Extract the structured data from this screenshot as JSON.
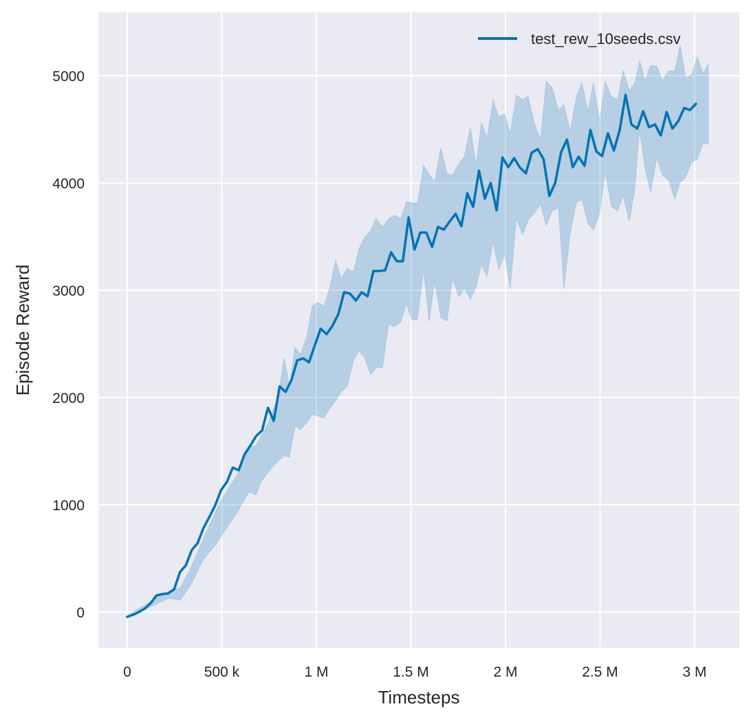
{
  "chart_data": {
    "type": "line",
    "title": "",
    "xlabel": "Timesteps",
    "ylabel": "Episode Reward",
    "xlim": [
      -150000,
      3250000
    ],
    "ylim": [
      -330,
      5600
    ],
    "grid": true,
    "legend_position": "top-right",
    "x_ticks": [
      0,
      500000,
      1000000,
      1500000,
      2000000,
      2500000,
      3000000
    ],
    "x_tick_labels": [
      "0",
      "500 k",
      "1 M",
      "1.5 M",
      "2 M",
      "2.5 M",
      "3 M"
    ],
    "y_ticks": [
      0,
      1000,
      2000,
      3000,
      4000,
      5000
    ],
    "y_tick_labels": [
      "0",
      "1000",
      "2000",
      "3000",
      "4000",
      "5000"
    ],
    "colors": {
      "background": "#eaeaf2",
      "grid": "#ffffff",
      "line": "#0173b2"
    },
    "series": [
      {
        "name": "test_rew_10seeds.csv",
        "x_step": 31000,
        "mean": [
          -45,
          -26,
          0,
          32,
          83,
          154,
          167,
          173,
          212,
          372,
          436,
          577,
          641,
          782,
          885,
          994,
          1135,
          1212,
          1346,
          1321,
          1468,
          1551,
          1641,
          1692,
          1904,
          1782,
          2103,
          2051,
          2160,
          2346,
          2365,
          2327,
          2487,
          2641,
          2590,
          2667,
          2776,
          2981,
          2968,
          2904,
          2981,
          2942,
          3179,
          3179,
          3186,
          3353,
          3269,
          3269,
          3679,
          3378,
          3538,
          3538,
          3404,
          3590,
          3564,
          3641,
          3712,
          3596,
          3904,
          3776,
          4115,
          3853,
          4000,
          3744,
          4237,
          4147,
          4231,
          4141,
          4090,
          4282,
          4314,
          4224,
          3878,
          4000,
          4288,
          4404,
          4147,
          4244,
          4160,
          4494,
          4295,
          4250,
          4462,
          4301,
          4494,
          4821,
          4545,
          4506,
          4667,
          4519,
          4545,
          4442,
          4660,
          4506,
          4577,
          4699,
          4679,
          4737
        ],
        "band_upper": [
          [
            0,
            -32
          ],
          [
            236000,
            212
          ],
          [
            280000,
            224
          ],
          [
            338000,
            417
          ],
          [
            400000,
            673
          ],
          [
            491000,
            1026
          ],
          [
            582000,
            1282
          ],
          [
            644000,
            1538
          ],
          [
            680000,
            1551
          ],
          [
            745000,
            1763
          ],
          [
            800000,
            2019
          ],
          [
            829000,
            2372
          ],
          [
            858000,
            2115
          ],
          [
            887000,
            2468
          ],
          [
            916000,
            2404
          ],
          [
            949000,
            2564
          ],
          [
            978000,
            2853
          ],
          [
            1007000,
            2885
          ],
          [
            1040000,
            2853
          ],
          [
            1069000,
            3013
          ],
          [
            1102000,
            3282
          ],
          [
            1131000,
            3109
          ],
          [
            1164000,
            3205
          ],
          [
            1196000,
            3173
          ],
          [
            1225000,
            3385
          ],
          [
            1255000,
            3494
          ],
          [
            1287000,
            3558
          ],
          [
            1316000,
            3667
          ],
          [
            1349000,
            3590
          ],
          [
            1382000,
            3667
          ],
          [
            1415000,
            3699
          ],
          [
            1447000,
            3667
          ],
          [
            1476000,
            3827
          ],
          [
            1505000,
            3814
          ],
          [
            1535000,
            3814
          ],
          [
            1567000,
            4167
          ],
          [
            1596000,
            4083
          ],
          [
            1625000,
            4006
          ],
          [
            1658000,
            4327
          ],
          [
            1691000,
            4090
          ],
          [
            1720000,
            4071
          ],
          [
            1753000,
            4179
          ],
          [
            1782000,
            4244
          ],
          [
            1815000,
            4519
          ],
          [
            1844000,
            4167
          ],
          [
            1873000,
            4564
          ],
          [
            1902000,
            4423
          ],
          [
            1935000,
            4776
          ],
          [
            1964000,
            4615
          ],
          [
            1996000,
            4647
          ],
          [
            2025000,
            4455
          ],
          [
            2058000,
            4820
          ],
          [
            2091000,
            4776
          ],
          [
            2120000,
            4808
          ],
          [
            2153000,
            4551
          ],
          [
            2185000,
            4404
          ],
          [
            2215000,
            4949
          ],
          [
            2247000,
            4885
          ],
          [
            2280000,
            4679
          ],
          [
            2309000,
            4731
          ],
          [
            2342000,
            4487
          ],
          [
            2375000,
            4808
          ],
          [
            2404000,
            4936
          ],
          [
            2436000,
            4667
          ],
          [
            2465000,
            4936
          ],
          [
            2498000,
            4583
          ],
          [
            2527000,
            4949
          ],
          [
            2560000,
            4808
          ],
          [
            2593000,
            4776
          ],
          [
            2622000,
            5051
          ],
          [
            2655000,
            4859
          ],
          [
            2684000,
            4936
          ],
          [
            2709000,
            5141
          ],
          [
            2738000,
            4955
          ],
          [
            2767000,
            5096
          ],
          [
            2800000,
            5090
          ],
          [
            2829000,
            4955
          ],
          [
            2862000,
            5045
          ],
          [
            2895000,
            5045
          ],
          [
            2924000,
            5288
          ],
          [
            2953000,
            4981
          ],
          [
            2985000,
            5013
          ],
          [
            3015000,
            5179
          ],
          [
            3044000,
            5019
          ],
          [
            3073000,
            5109
          ]
        ],
        "band_lower": [
          [
            0,
            -58
          ],
          [
            218000,
            128
          ],
          [
            280000,
            109
          ],
          [
            338000,
            256
          ],
          [
            400000,
            481
          ],
          [
            473000,
            641
          ],
          [
            545000,
            833
          ],
          [
            582000,
            929
          ],
          [
            644000,
            1122
          ],
          [
            680000,
            1090
          ],
          [
            709000,
            1218
          ],
          [
            771000,
            1359
          ],
          [
            800000,
            1410
          ],
          [
            829000,
            1455
          ],
          [
            858000,
            1442
          ],
          [
            887000,
            1731
          ],
          [
            916000,
            1699
          ],
          [
            949000,
            1763
          ],
          [
            978000,
            1840
          ],
          [
            1007000,
            1827
          ],
          [
            1040000,
            1808
          ],
          [
            1069000,
            1891
          ],
          [
            1102000,
            1968
          ],
          [
            1131000,
            2051
          ],
          [
            1164000,
            2103
          ],
          [
            1196000,
            2340
          ],
          [
            1225000,
            2436
          ],
          [
            1255000,
            2372
          ],
          [
            1287000,
            2212
          ],
          [
            1316000,
            2276
          ],
          [
            1349000,
            2276
          ],
          [
            1382000,
            2679
          ],
          [
            1415000,
            2660
          ],
          [
            1447000,
            2705
          ],
          [
            1476000,
            2872
          ],
          [
            1505000,
            2724
          ],
          [
            1535000,
            2724
          ],
          [
            1567000,
            3192
          ],
          [
            1596000,
            2705
          ],
          [
            1625000,
            3077
          ],
          [
            1658000,
            2744
          ],
          [
            1691000,
            2712
          ],
          [
            1720000,
            3109
          ],
          [
            1753000,
            2936
          ],
          [
            1782000,
            3013
          ],
          [
            1815000,
            2917
          ],
          [
            1844000,
            3026
          ],
          [
            1873000,
            3237
          ],
          [
            1902000,
            3128
          ],
          [
            1935000,
            3449
          ],
          [
            1964000,
            3192
          ],
          [
            1996000,
            3333
          ],
          [
            2025000,
            3013
          ],
          [
            2058000,
            3667
          ],
          [
            2091000,
            3513
          ],
          [
            2120000,
            3654
          ],
          [
            2153000,
            3718
          ],
          [
            2185000,
            3801
          ],
          [
            2215000,
            3603
          ],
          [
            2247000,
            3737
          ],
          [
            2280000,
            3769
          ],
          [
            2309000,
            3013
          ],
          [
            2342000,
            3526
          ],
          [
            2375000,
            3814
          ],
          [
            2404000,
            3846
          ],
          [
            2436000,
            3622
          ],
          [
            2465000,
            3558
          ],
          [
            2498000,
            3718
          ],
          [
            2527000,
            4103
          ],
          [
            2560000,
            3782
          ],
          [
            2593000,
            3737
          ],
          [
            2622000,
            3878
          ],
          [
            2655000,
            3641
          ],
          [
            2684000,
            3942
          ],
          [
            2709000,
            4487
          ],
          [
            2738000,
            4135
          ],
          [
            2767000,
            3910
          ],
          [
            2800000,
            4231
          ],
          [
            2829000,
            4071
          ],
          [
            2862000,
            4026
          ],
          [
            2895000,
            3846
          ],
          [
            2924000,
            4006
          ],
          [
            2953000,
            4051
          ],
          [
            2985000,
            4199
          ],
          [
            3015000,
            4218
          ],
          [
            3044000,
            4372
          ],
          [
            3073000,
            4359
          ]
        ]
      }
    ]
  }
}
